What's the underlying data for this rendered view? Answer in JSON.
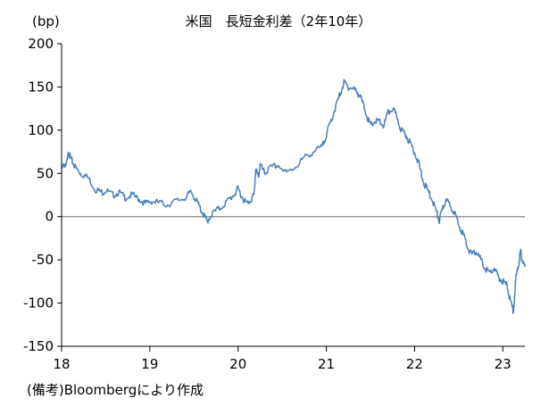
{
  "chart_data": {
    "type": "line",
    "title": "米国　長短金利差（2年10年）",
    "ylabel": "(bp)",
    "note": "(備考)Bloombergにより作成",
    "ylim": [
      -150,
      200
    ],
    "yticks": [
      200,
      150,
      100,
      50,
      0,
      -50,
      -100,
      -150
    ],
    "xlim": [
      2018.0,
      2023.25
    ],
    "xticks": [
      {
        "value": 2018,
        "label": "18"
      },
      {
        "value": 2019,
        "label": "19"
      },
      {
        "value": 2020,
        "label": "20"
      },
      {
        "value": 2021,
        "label": "21"
      },
      {
        "value": 2022,
        "label": "22"
      },
      {
        "value": 2023,
        "label": "23"
      }
    ],
    "grid": false,
    "colors": {
      "series": "#4a7ebb",
      "zero_line": "#999999",
      "axis": "#000000"
    },
    "series": [
      {
        "name": "",
        "x": [
          2018.0,
          2018.03,
          2018.06,
          2018.08,
          2018.1,
          2018.13,
          2018.17,
          2018.22,
          2018.3,
          2018.38,
          2018.45,
          2018.5,
          2018.58,
          2018.65,
          2018.72,
          2018.8,
          2018.88,
          2018.95,
          2019.02,
          2019.1,
          2019.2,
          2019.3,
          2019.4,
          2019.47,
          2019.52,
          2019.57,
          2019.62,
          2019.65,
          2019.72,
          2019.8,
          2019.88,
          2019.95,
          2020.0,
          2020.05,
          2020.1,
          2020.15,
          2020.18,
          2020.2,
          2020.23,
          2020.25,
          2020.3,
          2020.35,
          2020.45,
          2020.55,
          2020.65,
          2020.75,
          2020.85,
          2020.95,
          2021.0,
          2021.05,
          2021.1,
          2021.15,
          2021.2,
          2021.25,
          2021.3,
          2021.35,
          2021.4,
          2021.45,
          2021.5,
          2021.55,
          2021.6,
          2021.65,
          2021.7,
          2021.75,
          2021.8,
          2021.85,
          2021.9,
          2021.95,
          2022.0,
          2022.05,
          2022.1,
          2022.15,
          2022.2,
          2022.25,
          2022.28,
          2022.32,
          2022.35,
          2022.4,
          2022.45,
          2022.5,
          2022.55,
          2022.6,
          2022.65,
          2022.7,
          2022.75,
          2022.8,
          2022.85,
          2022.9,
          2022.95,
          2023.0,
          2023.05,
          2023.08,
          2023.12,
          2023.15,
          2023.18,
          2023.2,
          2023.22,
          2023.25
        ],
        "values": [
          55,
          60,
          62,
          75,
          68,
          62,
          55,
          50,
          45,
          32,
          28,
          30,
          25,
          28,
          22,
          25,
          20,
          15,
          18,
          16,
          14,
          18,
          22,
          28,
          20,
          10,
          0,
          -5,
          5,
          10,
          18,
          25,
          32,
          22,
          15,
          20,
          25,
          55,
          45,
          60,
          50,
          55,
          60,
          50,
          58,
          68,
          75,
          80,
          95,
          110,
          125,
          140,
          155,
          150,
          148,
          145,
          135,
          120,
          105,
          110,
          110,
          105,
          120,
          125,
          115,
          100,
          95,
          85,
          75,
          60,
          40,
          30,
          20,
          5,
          -5,
          10,
          18,
          15,
          5,
          -10,
          -20,
          -35,
          -45,
          -40,
          -50,
          -60,
          -65,
          -60,
          -70,
          -75,
          -80,
          -95,
          -110,
          -70,
          -55,
          -40,
          -50,
          -58
        ]
      }
    ]
  }
}
